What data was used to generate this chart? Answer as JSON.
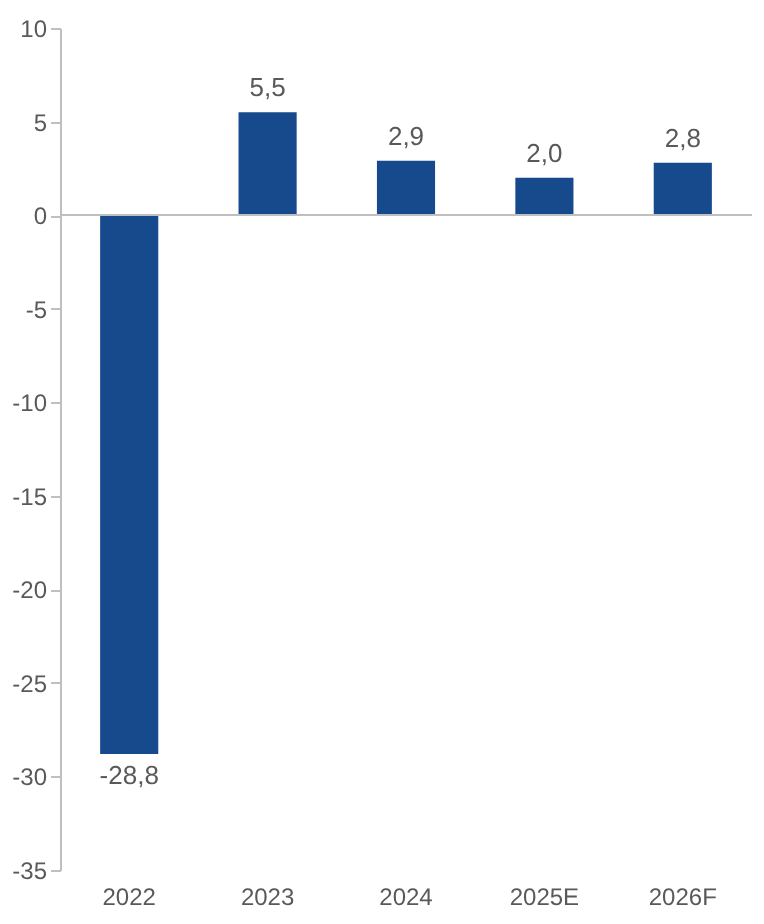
{
  "chart_data": {
    "type": "bar",
    "categories": [
      "2022",
      "2023",
      "2024",
      "2025E",
      "2026F"
    ],
    "values": [
      -28.8,
      5.5,
      2.9,
      2.0,
      2.8
    ],
    "value_labels": [
      "-28,8",
      "5,5",
      "2,9",
      "2,0",
      "2,8"
    ],
    "color": "#174a8c",
    "ylim": [
      -35,
      10
    ],
    "yticks": [
      -35,
      -30,
      -25,
      -20,
      -15,
      -10,
      -5,
      0,
      5,
      10
    ]
  }
}
